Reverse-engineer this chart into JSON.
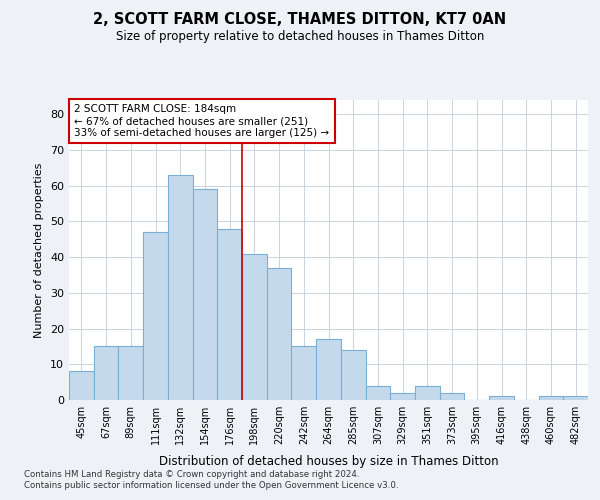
{
  "title": "2, SCOTT FARM CLOSE, THAMES DITTON, KT7 0AN",
  "subtitle": "Size of property relative to detached houses in Thames Ditton",
  "xlabel": "Distribution of detached houses by size in Thames Ditton",
  "ylabel": "Number of detached properties",
  "categories": [
    "45sqm",
    "67sqm",
    "89sqm",
    "111sqm",
    "132sqm",
    "154sqm",
    "176sqm",
    "198sqm",
    "220sqm",
    "242sqm",
    "264sqm",
    "285sqm",
    "307sqm",
    "329sqm",
    "351sqm",
    "373sqm",
    "395sqm",
    "416sqm",
    "438sqm",
    "460sqm",
    "482sqm"
  ],
  "bar_values": [
    8,
    15,
    15,
    47,
    63,
    59,
    48,
    41,
    37,
    15,
    17,
    14,
    4,
    2,
    4,
    2,
    0,
    1,
    0,
    1,
    1
  ],
  "bar_color": "#c5d9ec",
  "bar_edgecolor": "#7aafd4",
  "background_color": "#eef2f7",
  "plot_bg_color": "#ffffff",
  "grid_color": "#c8d4e0",
  "red_line_index": 7,
  "annotation_text": "2 SCOTT FARM CLOSE: 184sqm\n← 67% of detached houses are smaller (251)\n33% of semi-detached houses are larger (125) →",
  "annotation_box_color": "#ffffff",
  "annotation_box_edgecolor": "#cc0000",
  "footnote1": "Contains HM Land Registry data © Crown copyright and database right 2024.",
  "footnote2": "Contains public sector information licensed under the Open Government Licence v3.0.",
  "ylim": [
    0,
    84
  ],
  "yticks": [
    0,
    10,
    20,
    30,
    40,
    50,
    60,
    70,
    80
  ]
}
